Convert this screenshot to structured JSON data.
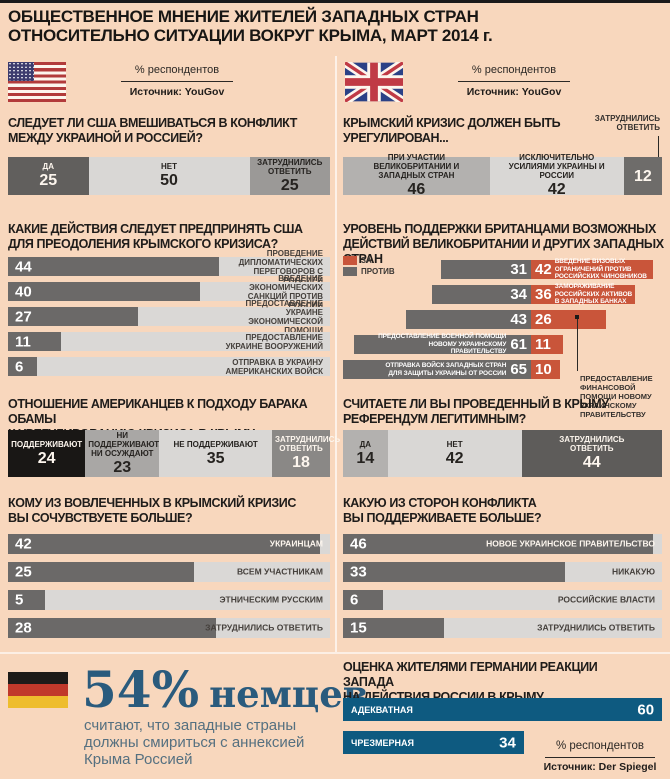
{
  "title": {
    "line1": "ОБЩЕСТВЕННОЕ МНЕНИЕ ЖИТЕЛЕЙ ЗАПАДНЫХ СТРАН",
    "line2": "ОТНОСИТЕЛЬНО СИТУАЦИИ ВОКРУГ КРЫМА, МАРТ 2014 г."
  },
  "header_us": {
    "percent": "% респондентов",
    "source": "Источник: YouGov"
  },
  "header_uk": {
    "percent": "% респондентов",
    "source": "Источник: YouGov"
  },
  "colors": {
    "background": "#f8d7bd",
    "accent_red": "#c9553a",
    "bar_gray": "#6b6968",
    "track_gray": "#dad8d6",
    "germany_blue": "#0e5a80",
    "stat_blue": "#2a5b7d",
    "top_strip": "#1a1a1a"
  },
  "chart_data": {
    "us_intervene": {
      "type": "bar",
      "stacked": true,
      "unit": "%",
      "title_line1": "СЛЕДУЕТ ЛИ США ВМЕШИВАТЬСЯ В КОНФЛИКТ",
      "title_line2": "МЕЖДУ УКРАИНОЙ И РОССИЕЙ?",
      "segments": [
        {
          "label": "ДА",
          "value": 25
        },
        {
          "label": "НЕТ",
          "value": 50
        },
        {
          "label": "ЗАТРУДНИЛИСЬ ОТВЕТИТЬ",
          "value": 25
        }
      ]
    },
    "us_actions": {
      "type": "bar",
      "unit": "%",
      "title_line1": "КАКИЕ ДЕЙСТВИЯ СЛЕДУЕТ ПРЕДПРИНЯТЬ США",
      "title_line2": "ДЛЯ ПРЕОДОЛЕНИЯ КРЫМСКОГО КРИЗИСА?",
      "rows": [
        {
          "value": 44,
          "label": "ПРОВЕДЕНИЕ ДИПЛОМАТИЧЕСКИХ ПЕРЕГОВОРОВ С РОССИЕЙ"
        },
        {
          "value": 40,
          "label": "ВВЕДЕНИЕ ЭКОНОМИЧЕСКИХ САНКЦИЙ ПРОТИВ РОССИИ"
        },
        {
          "value": 27,
          "label": "ПРЕДОСТАВЛЕНИЕ УКРАИНЕ ЭКОНОМИЧЕСКОЙ ПОМОЩИ"
        },
        {
          "value": 11,
          "label": "ПРЕДОСТАВЛЕНИЕ УКРАИНЕ ВООРУЖЕНИЙ"
        },
        {
          "value": 6,
          "label": "ОТПРАВКА В УКРАИНУ АМЕРИКАНСКИХ ВОЙСК"
        }
      ]
    },
    "us_obama": {
      "type": "bar",
      "stacked": true,
      "unit": "%",
      "title_line1": "ОТНОШЕНИЕ АМЕРИКАНЦЕВ К ПОДХОДУ БАРАКА ОБАМЫ",
      "title_line2": "К УРЕГУЛИРОВАНИЮ КРИЗИСА В КРЫМУ",
      "segments": [
        {
          "label": "ПОДДЕРЖИВАЮТ",
          "value": 24
        },
        {
          "label": "НИ ПОДДЕРЖИВАЮТ, НИ ОСУЖДАЮТ",
          "value": 23
        },
        {
          "label": "НЕ ПОДДЕРЖИВАЮТ",
          "value": 35
        },
        {
          "label": "ЗАТРУДНИЛИСЬ ОТВЕТИТЬ",
          "value": 18
        }
      ]
    },
    "us_sympathy": {
      "type": "bar",
      "unit": "%",
      "title_line1": "КОМУ ИЗ ВОВЛЕЧЕННЫХ В КРЫМСКИЙ КРИЗИС",
      "title_line2": "ВЫ СОЧУВСТВУЕТЕ БОЛЬШЕ?",
      "rows": [
        {
          "value": 42,
          "label": "УКРАИНЦАМ"
        },
        {
          "value": 25,
          "label": "ВСЕМ УЧАСТНИКАМ"
        },
        {
          "value": 5,
          "label": "ЭТНИЧЕСКИМ РУССКИМ"
        },
        {
          "value": 28,
          "label": "ЗАТРУДНИЛИСЬ ОТВЕТИТЬ"
        }
      ]
    },
    "uk_settle": {
      "type": "bar",
      "stacked": true,
      "unit": "%",
      "title_line1": "КРЫМСКИЙ КРИЗИС ДОЛЖЕН БЫТЬ",
      "title_line2": "УРЕГУЛИРОВАН...",
      "callout": "ЗАТРУДНИЛИСЬ ОТВЕТИТЬ",
      "segments": [
        {
          "label": "ПРИ УЧАСТИИ ВЕЛИКОБРИТАНИИ И ЗАПАДНЫХ СТРАН",
          "value": 46
        },
        {
          "label": "ИСКЛЮЧИТЕЛЬНО УСИЛИЯМИ УКРАИНЫ И РОССИИ",
          "value": 42
        },
        {
          "label": "ЗАТРУДНИЛИСЬ ОТВЕТИТЬ",
          "value": 12
        }
      ]
    },
    "uk_support": {
      "type": "diverging-bar",
      "unit": "%",
      "title_line1": "УРОВЕНЬ ПОДДЕРЖКИ БРИТАНЦАМИ ВОЗМОЖНЫХ",
      "title_line2": "ДЕЙСТВИЙ ВЕЛИКОБРИТАНИИ И ДРУГИХ ЗАПАДНЫХ СТРАН",
      "legend_for": "ЗА",
      "legend_against": "ПРОТИВ",
      "rows": [
        {
          "against": 31,
          "for": 42,
          "label": "ВВЕДЕНИЕ ВИЗОВЫХ ОГРАНИЧЕНИЙ ПРОТИВ РОССИЙСКИХ ЧИНОВНИКОВ"
        },
        {
          "against": 34,
          "for": 36,
          "label": "ЗАМОРАЖИВАНИЕ РОССИЙСКИХ АКТИВОВ В ЗАПАДНЫХ БАНКАХ"
        },
        {
          "against": 43,
          "for": 26,
          "label": "ПРЕДОСТАВЛЕНИЕ ФИНАНСОВОЙ ПОМОЩИ НОВОМУ УКРАИНСКОМУ ПРАВИТЕЛЬСТВУ"
        },
        {
          "against": 61,
          "for": 11,
          "label": "ПРЕДОСТАВЛЕНИЕ ВОЕННОЙ ПОМОЩИ НОВОМУ УКРАИНСКОМУ ПРАВИТЕЛЬСТВУ"
        },
        {
          "against": 65,
          "for": 10,
          "label": "ОТПРАВКА ВОЙСК ЗАПАДНЫХ СТРАН ДЛЯ ЗАЩИТЫ УКРАИНЫ ОТ РОССИИ"
        }
      ]
    },
    "uk_referendum": {
      "type": "bar",
      "stacked": true,
      "unit": "%",
      "title_line1": "СЧИТАЕТЕ ЛИ ВЫ ПРОВЕДЕННЫЙ В КРЫМУ",
      "title_line2": "РЕФЕРЕНДУМ ЛЕГИТИМНЫМ?",
      "segments": [
        {
          "label": "ДА",
          "value": 14
        },
        {
          "label": "НЕТ",
          "value": 42
        },
        {
          "label": "ЗАТРУДНИЛИСЬ ОТВЕТИТЬ",
          "value": 44
        }
      ]
    },
    "uk_sides": {
      "type": "bar",
      "unit": "%",
      "title_line1": "КАКУЮ ИЗ СТОРОН КОНФЛИКТА",
      "title_line2": "ВЫ ПОДДЕРЖИВАЕТЕ БОЛЬШЕ?",
      "rows": [
        {
          "value": 46,
          "label": "НОВОЕ УКРАИНСКОЕ ПРАВИТЕЛЬСТВО"
        },
        {
          "value": 33,
          "label": "НИКАКУЮ"
        },
        {
          "value": 6,
          "label": "РОССИЙСКИЕ ВЛАСТИ"
        },
        {
          "value": 15,
          "label": "ЗАТРУДНИЛИСЬ ОТВЕТИТЬ"
        }
      ]
    },
    "germany_reaction": {
      "type": "bar",
      "unit": "%",
      "title_line1": "ОЦЕНКА ЖИТЕЛЯМИ ГЕРМАНИИ РЕАКЦИИ ЗАПАДА",
      "title_line2": "НА ДЕЙСТВИЯ РОССИИ В КРЫМУ",
      "rows": [
        {
          "value": 60,
          "label": "АДЕКВАТНАЯ"
        },
        {
          "value": 34,
          "label": "ЧРЕЗМЕРНАЯ"
        }
      ],
      "percent": "% респондентов",
      "source": "Источник: Der Spiegel"
    }
  },
  "germany_stat": {
    "value": "54%",
    "unit": "немцев",
    "text": "считают, что западные страны должны смириться с аннексией Крыма Россией"
  }
}
